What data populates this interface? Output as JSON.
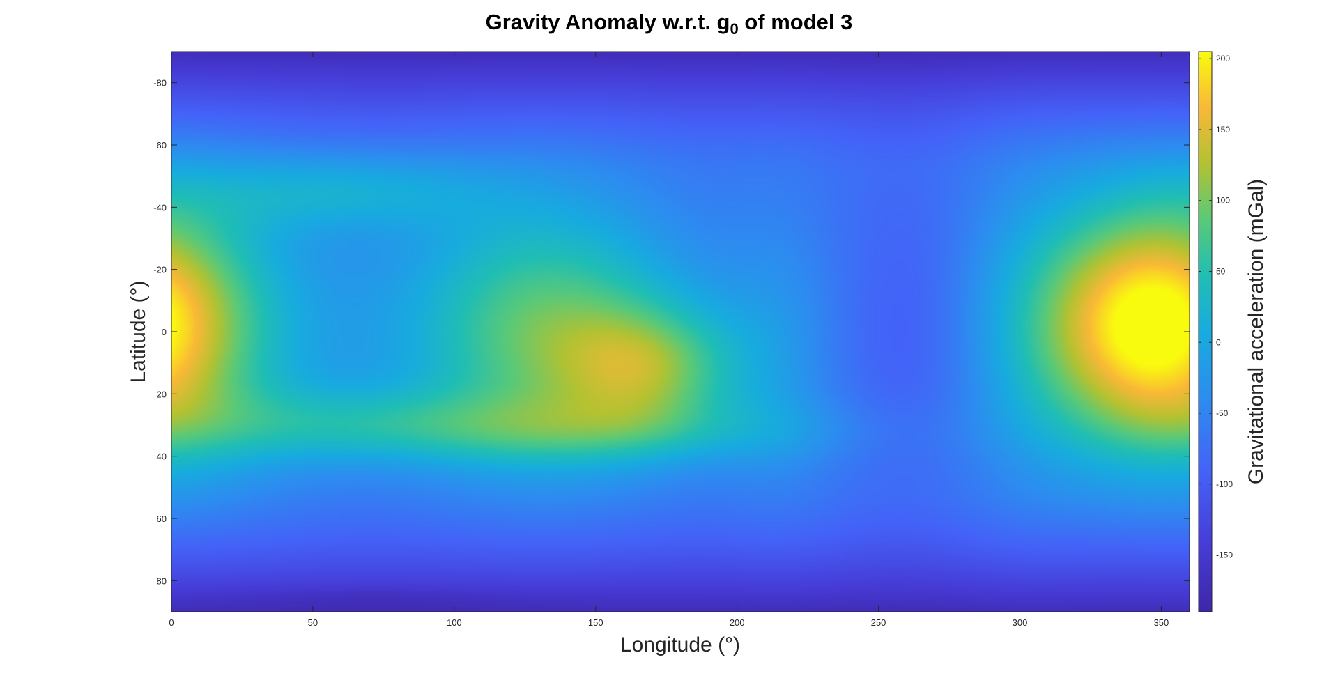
{
  "title": {
    "main_before": "Gravity Anomaly w.r.t. g",
    "subscript": "0",
    "main_after": " of model 3"
  },
  "chart_data": {
    "type": "heatmap",
    "title": "Gravity Anomaly w.r.t. g0 of model 3",
    "xlabel": "Longitude (°)",
    "ylabel": "Latitude (°)",
    "colorbar_label": "Gravitational acceleration (mGal)",
    "xlim": [
      0,
      360
    ],
    "ylim": [
      -90,
      90
    ],
    "y_reversed": true,
    "x_ticks": [
      0,
      50,
      100,
      150,
      200,
      250,
      300,
      350
    ],
    "y_ticks": [
      -80,
      -60,
      -40,
      -20,
      0,
      20,
      40,
      60,
      80
    ],
    "colorbar": {
      "colormap": "parula",
      "clim": [
        -190,
        205
      ],
      "ticks": [
        -150,
        -100,
        -50,
        0,
        50,
        100,
        150,
        200
      ]
    },
    "background_level_mgal": -75,
    "polar_level_mgal": -175,
    "features": [
      {
        "lon": 345,
        "lat": 0,
        "value": 205,
        "type": "high"
      },
      {
        "lon": 5,
        "lat": -5,
        "value": 150,
        "type": "high"
      },
      {
        "lon": 130,
        "lat": 0,
        "value": 145,
        "type": "high"
      },
      {
        "lon": 165,
        "lat": 10,
        "value": 100,
        "type": "high"
      },
      {
        "lon": 20,
        "lat": 0,
        "value": 30,
        "type": "ridge"
      },
      {
        "lon": 80,
        "lat": 30,
        "value": -20,
        "type": "ridge"
      },
      {
        "lon": 265,
        "lat": 0,
        "value": -60,
        "type": "low"
      },
      {
        "lon": 70,
        "lat": 85,
        "value": -190,
        "type": "low"
      },
      {
        "lon": 90,
        "lat": -70,
        "value": -170,
        "type": "low"
      }
    ],
    "grid": false
  }
}
